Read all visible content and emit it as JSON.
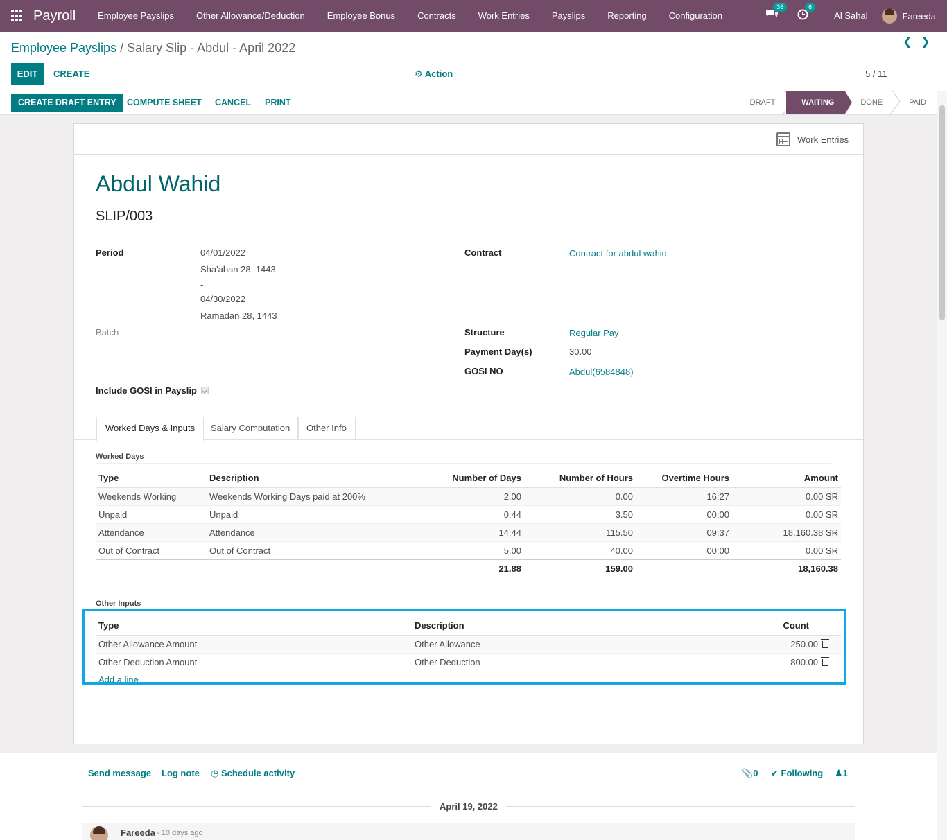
{
  "nav": {
    "brand": "Payroll",
    "menu": [
      "Employee Payslips",
      "Other Allowance/Deduction",
      "Employee Bonus",
      "Contracts",
      "Work Entries",
      "Payslips",
      "Reporting",
      "Configuration"
    ],
    "messages_count": "36",
    "activities_count": "6",
    "company": "Al Sahal",
    "user": "Fareeda"
  },
  "control": {
    "breadcrumb_parent": "Employee Payslips",
    "breadcrumb_sep": " / ",
    "breadcrumb_current": "Salary Slip - Abdul - April 2022",
    "edit_label": "EDIT",
    "create_label": "CREATE",
    "action_label": "Action",
    "pager": "5 / 11"
  },
  "header": {
    "buttons": [
      "CREATE DRAFT ENTRY",
      "COMPUTE SHEET",
      "CANCEL",
      "PRINT"
    ],
    "stages": [
      "DRAFT",
      "WAITING",
      "DONE",
      "PAID"
    ],
    "active_stage": "WAITING"
  },
  "sheet": {
    "smart_button": "Work Entries",
    "employee_name": "Abdul Wahid",
    "slip_number": "SLIP/003",
    "period_label": "Period",
    "period_start": "04/01/2022",
    "period_start_hijri": "Sha'aban 28, 1443",
    "period_dash": "-",
    "period_end": "04/30/2022",
    "period_end_hijri": "Ramadan 28, 1443",
    "batch_label": "Batch",
    "gosi_include_label": "Include GOSI in Payslip",
    "gosi_include_checked": true,
    "contract_label": "Contract",
    "contract_value": "Contract for abdul wahid",
    "structure_label": "Structure",
    "structure_value": "Regular Pay",
    "payment_days_label": "Payment Day(s)",
    "payment_days_value": "30.00",
    "gosi_no_label": "GOSI NO",
    "gosi_no_value": "Abdul(6584848)"
  },
  "tabs": [
    "Worked Days & Inputs",
    "Salary Computation",
    "Other Info"
  ],
  "worked_days": {
    "title": "Worked Days",
    "columns": [
      "Type",
      "Description",
      "Number of Days",
      "Number of Hours",
      "Overtime Hours",
      "Amount"
    ],
    "rows": [
      [
        "Weekends Working",
        "Weekends Working Days paid at 200%",
        "2.00",
        "0.00",
        "16:27",
        "0.00 SR"
      ],
      [
        "Unpaid",
        "Unpaid",
        "0.44",
        "3.50",
        "00:00",
        "0.00 SR"
      ],
      [
        "Attendance",
        "Attendance",
        "14.44",
        "115.50",
        "09:37",
        "18,160.38 SR"
      ],
      [
        "Out of Contract",
        "Out of Contract",
        "5.00",
        "40.00",
        "00:00",
        "0.00 SR"
      ]
    ],
    "totals": [
      "21.88",
      "159.00",
      "18,160.38"
    ]
  },
  "other_inputs": {
    "title": "Other Inputs",
    "columns": [
      "Type",
      "Description",
      "Count"
    ],
    "rows": [
      [
        "Other Allowance Amount",
        "Other Allowance",
        "250.00"
      ],
      [
        "Other Deduction Amount",
        "Other Deduction",
        "800.00"
      ]
    ],
    "add_line": "Add a line"
  },
  "chatter": {
    "send_message": "Send message",
    "log_note": "Log note",
    "schedule_activity": "Schedule activity",
    "attachments": "0",
    "following": "Following",
    "followers": "1",
    "date": "April 19, 2022",
    "author": "Fareeda",
    "time": "- 10 days ago"
  },
  "colors": {
    "brand": "#714b67",
    "accent": "#017e84",
    "highlight": "#12a7e0"
  }
}
